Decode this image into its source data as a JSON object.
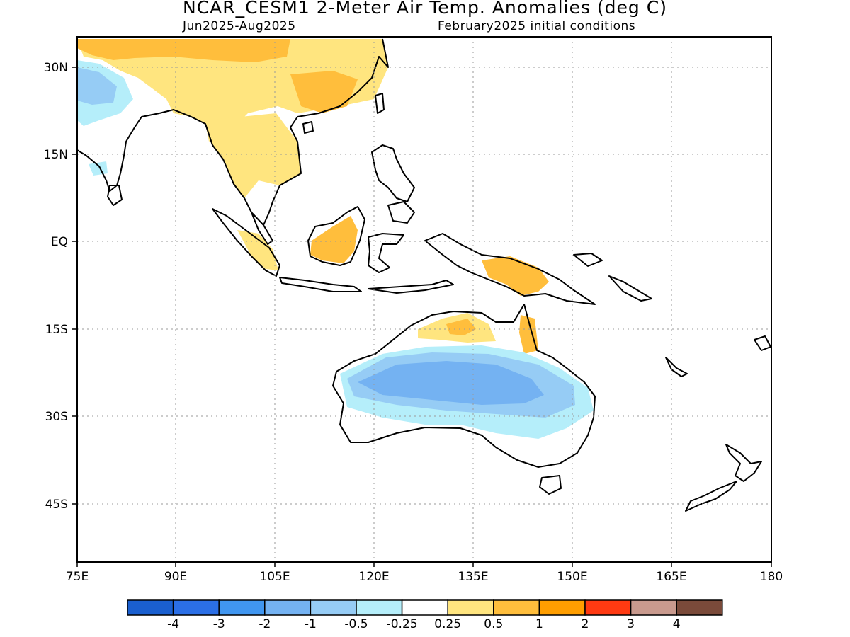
{
  "header": {
    "title": "NCAR_CESM1 2-Meter Air Temp. Anomalies (deg C)",
    "period": "Jun2025-Aug2025",
    "init": "February2025 initial conditions"
  },
  "map": {
    "lon_labels": [
      "75E",
      "90E",
      "105E",
      "120E",
      "135E",
      "150E",
      "165E",
      "180"
    ],
    "lat_labels": [
      "30N",
      "15N",
      "EQ",
      "15S",
      "30S",
      "45S"
    ]
  },
  "legend": {
    "colors": [
      "#1a5fcf",
      "#2b6fe6",
      "#4096f0",
      "#74b2f2",
      "#96ccf5",
      "#b5eefa",
      "#ffffff",
      "#ffe57f",
      "#ffbe3c",
      "#ff9e00",
      "#ff3a12",
      "#c99a8e",
      "#7a4a3a"
    ],
    "labels": [
      "-4",
      "-3",
      "-2",
      "-1",
      "-0.5",
      "-0.25",
      "0.25",
      "0.5",
      "1",
      "2",
      "3",
      "4"
    ]
  },
  "palette": {
    "coast": "#000000",
    "grid": "#9a9a9a"
  }
}
